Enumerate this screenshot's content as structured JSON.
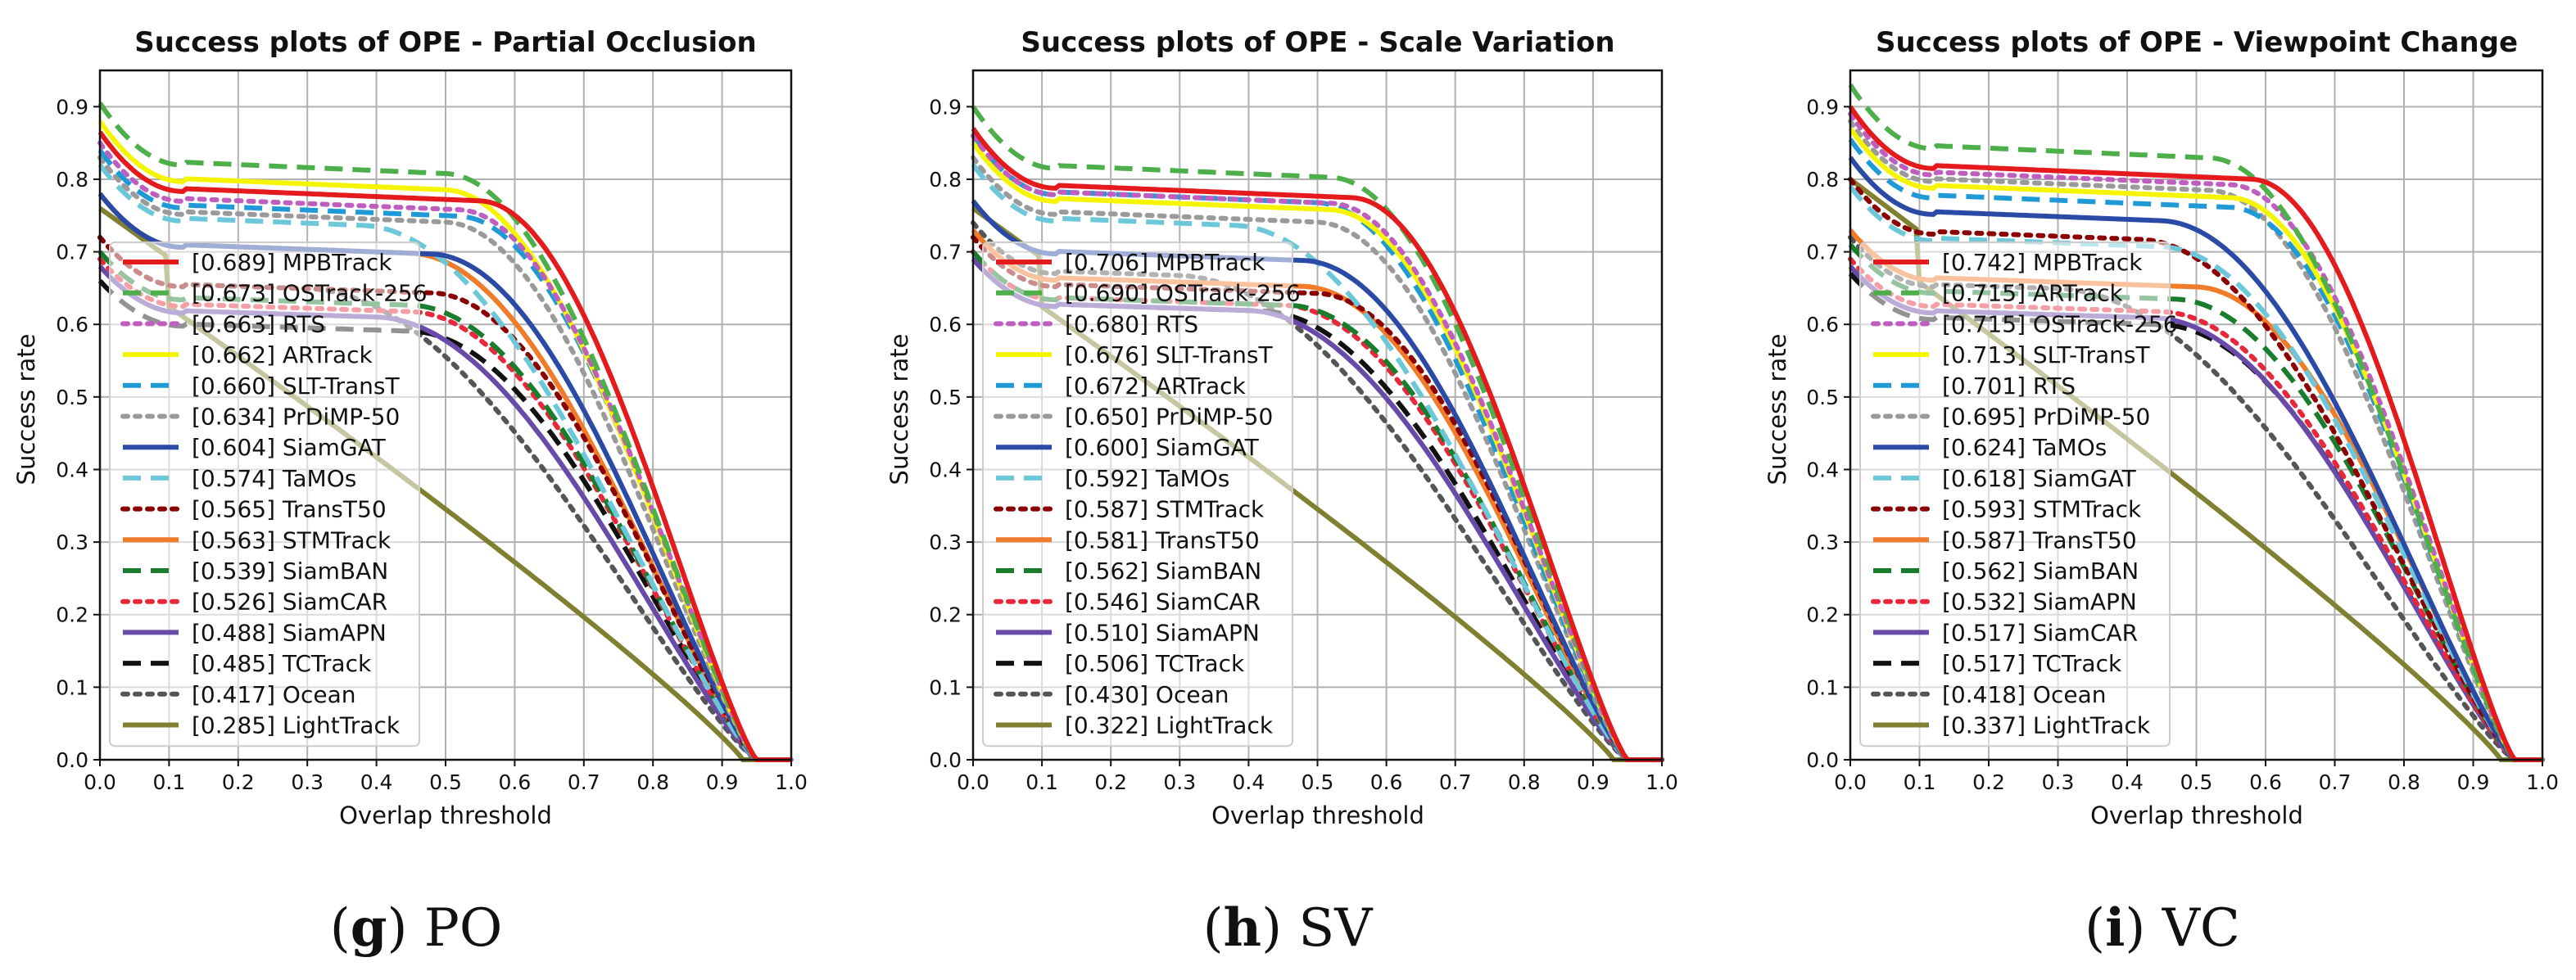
{
  "chart_data": [
    {
      "type": "line",
      "panel": "g",
      "caption": "PO",
      "title": "Success plots of OPE - Partial Occlusion",
      "xlabel": "Overlap threshold",
      "ylabel": "Success rate",
      "xlim": [
        0,
        1
      ],
      "ylim": [
        0,
        0.95
      ],
      "xticks": [
        "0.0",
        "0.1",
        "0.2",
        "0.3",
        "0.4",
        "0.5",
        "0.6",
        "0.7",
        "0.8",
        "0.9",
        "1.0"
      ],
      "yticks": [
        "0.0",
        "0.1",
        "0.2",
        "0.3",
        "0.4",
        "0.5",
        "0.6",
        "0.7",
        "0.8",
        "0.9"
      ],
      "grid": true,
      "legend_position": "center-left",
      "series": [
        {
          "name": "[0.689] MPBTrack",
          "start": 0.865,
          "knee": 0.55,
          "end": 0.95,
          "color": "#e41a1c",
          "style": "solid"
        },
        {
          "name": "[0.673] OSTrack-256",
          "start": 0.905,
          "knee": 0.5,
          "end": 0.95,
          "color": "#4daf4a",
          "style": "dashed"
        },
        {
          "name": "[0.663] RTS",
          "start": 0.85,
          "knee": 0.52,
          "end": 0.95,
          "color": "#c05ec0",
          "style": "dotted"
        },
        {
          "name": "[0.662] ARTrack",
          "start": 0.88,
          "knee": 0.5,
          "end": 0.95,
          "color": "#f5f500",
          "style": "solid"
        },
        {
          "name": "[0.660] SLT-TransT",
          "start": 0.84,
          "knee": 0.52,
          "end": 0.95,
          "color": "#1f9ad6",
          "style": "dashed"
        },
        {
          "name": "[0.634] PrDiMP-50",
          "start": 0.83,
          "knee": 0.5,
          "end": 0.95,
          "color": "#9a9a9a",
          "style": "dotted"
        },
        {
          "name": "[0.604] SiamGAT",
          "start": 0.78,
          "knee": 0.48,
          "end": 0.95,
          "color": "#2a4aa6",
          "style": "solid"
        },
        {
          "name": "[0.574] TaMOs",
          "start": 0.82,
          "knee": 0.38,
          "end": 0.95,
          "color": "#6cc8d8",
          "style": "dashed"
        },
        {
          "name": "[0.565] TransT50",
          "start": 0.72,
          "knee": 0.48,
          "end": 0.95,
          "color": "#8b0000",
          "style": "dotted"
        },
        {
          "name": "[0.563] STMTrack",
          "start": 0.78,
          "knee": 0.45,
          "end": 0.95,
          "color": "#f07b28",
          "style": "solid"
        },
        {
          "name": "[0.539] SiamBAN",
          "start": 0.7,
          "knee": 0.45,
          "end": 0.95,
          "color": "#1a7d2e",
          "style": "dashed"
        },
        {
          "name": "[0.526] SiamCAR",
          "start": 0.69,
          "knee": 0.45,
          "end": 0.95,
          "color": "#e8283a",
          "style": "dotted"
        },
        {
          "name": "[0.488] SiamAPN",
          "start": 0.68,
          "knee": 0.4,
          "end": 0.95,
          "color": "#6a4aa8",
          "style": "solid"
        },
        {
          "name": "[0.485] TCTrack",
          "start": 0.66,
          "knee": 0.45,
          "end": 0.95,
          "color": "#111111",
          "style": "dashed"
        },
        {
          "name": "[0.417] Ocean",
          "start": 0.72,
          "knee": 0.3,
          "end": 0.95,
          "color": "#555555",
          "style": "dotted"
        },
        {
          "name": "[0.285] LightTrack",
          "start": 0.76,
          "knee": 0.05,
          "end": 0.93,
          "color": "#808030",
          "style": "solid"
        }
      ]
    },
    {
      "type": "line",
      "panel": "h",
      "caption": "SV",
      "title": "Success plots of OPE - Scale Variation",
      "xlabel": "Overlap threshold",
      "ylabel": "Success rate",
      "xlim": [
        0,
        1
      ],
      "ylim": [
        0,
        0.95
      ],
      "xticks": [
        "0.0",
        "0.1",
        "0.2",
        "0.3",
        "0.4",
        "0.5",
        "0.6",
        "0.7",
        "0.8",
        "0.9",
        "1.0"
      ],
      "yticks": [
        "0.0",
        "0.1",
        "0.2",
        "0.3",
        "0.4",
        "0.5",
        "0.6",
        "0.7",
        "0.8",
        "0.9"
      ],
      "grid": true,
      "legend_position": "center-left",
      "series": [
        {
          "name": "[0.706] MPBTrack",
          "start": 0.87,
          "knee": 0.55,
          "end": 0.95,
          "color": "#e41a1c",
          "style": "solid"
        },
        {
          "name": "[0.690] OSTrack-256",
          "start": 0.9,
          "knee": 0.52,
          "end": 0.95,
          "color": "#4daf4a",
          "style": "dashed"
        },
        {
          "name": "[0.680] RTS",
          "start": 0.86,
          "knee": 0.52,
          "end": 0.95,
          "color": "#c05ec0",
          "style": "dotted"
        },
        {
          "name": "[0.676] SLT-TransT",
          "start": 0.85,
          "knee": 0.52,
          "end": 0.95,
          "color": "#f5f500",
          "style": "solid"
        },
        {
          "name": "[0.672] ARTrack",
          "start": 0.86,
          "knee": 0.5,
          "end": 0.95,
          "color": "#1f9ad6",
          "style": "dashed"
        },
        {
          "name": "[0.650] PrDiMP-50",
          "start": 0.83,
          "knee": 0.5,
          "end": 0.95,
          "color": "#9a9a9a",
          "style": "dotted"
        },
        {
          "name": "[0.600] SiamGAT",
          "start": 0.77,
          "knee": 0.48,
          "end": 0.95,
          "color": "#2a4aa6",
          "style": "solid"
        },
        {
          "name": "[0.592] TaMOs",
          "start": 0.82,
          "knee": 0.38,
          "end": 0.95,
          "color": "#6cc8d8",
          "style": "dashed"
        },
        {
          "name": "[0.587] STMTrack",
          "start": 0.72,
          "knee": 0.5,
          "end": 0.95,
          "color": "#8b0000",
          "style": "dotted"
        },
        {
          "name": "[0.581] TransT50",
          "start": 0.73,
          "knee": 0.48,
          "end": 0.95,
          "color": "#f07b28",
          "style": "solid"
        },
        {
          "name": "[0.562] SiamBAN",
          "start": 0.7,
          "knee": 0.46,
          "end": 0.95,
          "color": "#1a7d2e",
          "style": "dashed"
        },
        {
          "name": "[0.546] SiamCAR",
          "start": 0.7,
          "knee": 0.45,
          "end": 0.95,
          "color": "#e8283a",
          "style": "dotted"
        },
        {
          "name": "[0.510] SiamAPN",
          "start": 0.69,
          "knee": 0.4,
          "end": 0.95,
          "color": "#6a4aa8",
          "style": "solid"
        },
        {
          "name": "[0.506] TCTrack",
          "start": 0.69,
          "knee": 0.42,
          "end": 0.95,
          "color": "#111111",
          "style": "dashed"
        },
        {
          "name": "[0.430] Ocean",
          "start": 0.74,
          "knee": 0.3,
          "end": 0.95,
          "color": "#555555",
          "style": "dotted"
        },
        {
          "name": "[0.322] LightTrack",
          "start": 0.76,
          "knee": 0.07,
          "end": 0.93,
          "color": "#808030",
          "style": "solid"
        }
      ]
    },
    {
      "type": "line",
      "panel": "i",
      "caption": "VC",
      "title": "Success plots of OPE - Viewpoint Change",
      "xlabel": "Overlap threshold",
      "ylabel": "Success rate",
      "xlim": [
        0,
        1
      ],
      "ylim": [
        0,
        0.95
      ],
      "xticks": [
        "0.0",
        "0.1",
        "0.2",
        "0.3",
        "0.4",
        "0.5",
        "0.6",
        "0.7",
        "0.8",
        "0.9",
        "1.0"
      ],
      "yticks": [
        "0.0",
        "0.1",
        "0.2",
        "0.3",
        "0.4",
        "0.5",
        "0.6",
        "0.7",
        "0.8",
        "0.9"
      ],
      "grid": true,
      "legend_position": "center-left",
      "series": [
        {
          "name": "[0.742] MPBTrack",
          "start": 0.9,
          "knee": 0.58,
          "end": 0.96,
          "color": "#e41a1c",
          "style": "solid"
        },
        {
          "name": "[0.715] ARTrack",
          "start": 0.93,
          "knee": 0.52,
          "end": 0.96,
          "color": "#4daf4a",
          "style": "dashed"
        },
        {
          "name": "[0.715] OSTrack-256",
          "start": 0.89,
          "knee": 0.55,
          "end": 0.96,
          "color": "#c05ec0",
          "style": "dotted"
        },
        {
          "name": "[0.713] SLT-TransT",
          "start": 0.87,
          "knee": 0.55,
          "end": 0.96,
          "color": "#f5f500",
          "style": "solid"
        },
        {
          "name": "[0.701] RTS",
          "start": 0.855,
          "knee": 0.55,
          "end": 0.96,
          "color": "#1f9ad6",
          "style": "dashed"
        },
        {
          "name": "[0.695] PrDiMP-50",
          "start": 0.88,
          "knee": 0.52,
          "end": 0.96,
          "color": "#9a9a9a",
          "style": "dotted"
        },
        {
          "name": "[0.624] TaMOs",
          "start": 0.83,
          "knee": 0.45,
          "end": 0.96,
          "color": "#2a4aa6",
          "style": "solid"
        },
        {
          "name": "[0.618] SiamGAT",
          "start": 0.79,
          "knee": 0.45,
          "end": 0.96,
          "color": "#6cc8d8",
          "style": "dashed"
        },
        {
          "name": "[0.593] STMTrack",
          "start": 0.8,
          "knee": 0.42,
          "end": 0.96,
          "color": "#8b0000",
          "style": "dotted"
        },
        {
          "name": "[0.587] TransT50",
          "start": 0.73,
          "knee": 0.5,
          "end": 0.96,
          "color": "#f07b28",
          "style": "solid"
        },
        {
          "name": "[0.562] SiamBAN",
          "start": 0.71,
          "knee": 0.47,
          "end": 0.96,
          "color": "#1a7d2e",
          "style": "dashed"
        },
        {
          "name": "[0.532] SiamAPN",
          "start": 0.69,
          "knee": 0.45,
          "end": 0.96,
          "color": "#e8283a",
          "style": "dotted"
        },
        {
          "name": "[0.517] SiamCAR",
          "start": 0.68,
          "knee": 0.44,
          "end": 0.96,
          "color": "#6a4aa8",
          "style": "solid"
        },
        {
          "name": "[0.517] TCTrack",
          "start": 0.67,
          "knee": 0.45,
          "end": 0.96,
          "color": "#111111",
          "style": "dashed"
        },
        {
          "name": "[0.418] Ocean",
          "start": 0.72,
          "knee": 0.3,
          "end": 0.96,
          "color": "#555555",
          "style": "dotted"
        },
        {
          "name": "[0.337] LightTrack",
          "start": 0.8,
          "knee": 0.06,
          "end": 0.94,
          "color": "#808030",
          "style": "solid"
        }
      ]
    }
  ]
}
